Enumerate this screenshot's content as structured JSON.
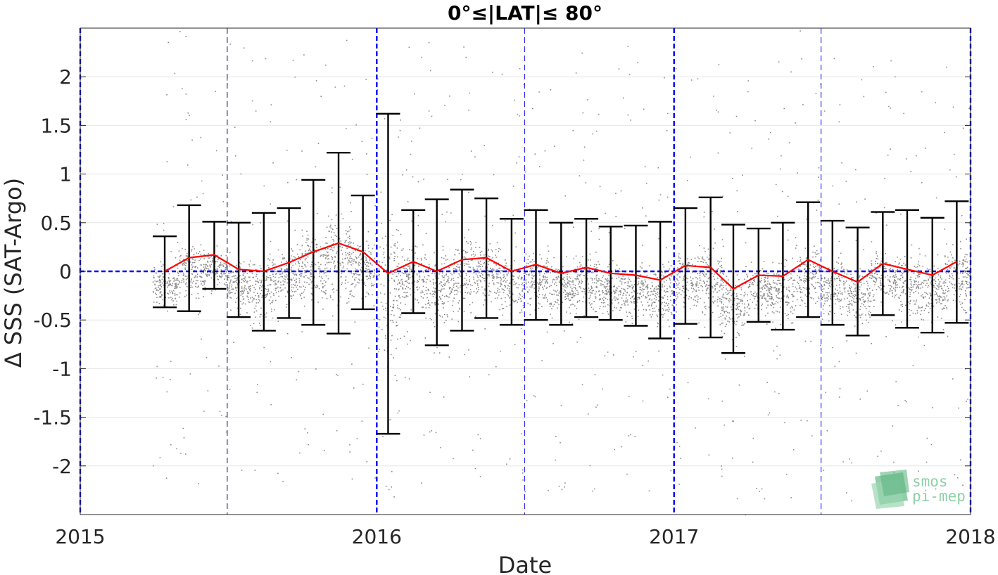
{
  "chart_data": {
    "type": "scatter",
    "title": "0°≤|LAT|≤ 80°",
    "xlabel": "Date",
    "ylabel": "Δ SSS (SAT-Argo)",
    "xlim": [
      "2015-01-01",
      "2018-01-01"
    ],
    "ylim": [
      -2.5,
      2.5
    ],
    "xticks": [
      "2015",
      "2016",
      "2017",
      "2018"
    ],
    "yticks": [
      "-2",
      "-1.5",
      "-1",
      "-0.5",
      "0",
      "0.5",
      "1",
      "1.5",
      "2"
    ],
    "grid": true,
    "colors": {
      "scatter": "#8c8c8c",
      "mean_line": "#ff0000",
      "error_bars": "#000000",
      "year_lines": "#0000ff",
      "zero_line": "#0000ff",
      "grid": "#e6e6e6",
      "axes": "#262626"
    },
    "scatter_note": "gray dots: individual SAT-Argo differences, dense between -0.5 and 0.5",
    "series": [
      {
        "type": "errorbar",
        "x": [
          "2015-04-15",
          "2015-05-15",
          "2015-06-15",
          "2015-07-15",
          "2015-08-15",
          "2015-09-15",
          "2015-10-15",
          "2015-11-15",
          "2015-12-15",
          "2016-01-15",
          "2016-02-15",
          "2016-03-15",
          "2016-04-15",
          "2016-05-15",
          "2016-06-15",
          "2016-07-15",
          "2016-08-15",
          "2016-09-15",
          "2016-10-15",
          "2016-11-15",
          "2016-12-15",
          "2017-01-15",
          "2017-02-15",
          "2017-03-15",
          "2017-04-15",
          "2017-05-15",
          "2017-06-15",
          "2017-07-15",
          "2017-08-15",
          "2017-09-15",
          "2017-10-15",
          "2017-11-15",
          "2017-12-15"
        ],
        "mean": [
          0.0,
          0.14,
          0.17,
          0.02,
          0.0,
          0.09,
          0.2,
          0.29,
          0.2,
          -0.02,
          0.1,
          0.0,
          0.12,
          0.14,
          0.0,
          0.07,
          -0.02,
          0.04,
          -0.02,
          -0.04,
          -0.09,
          0.06,
          0.04,
          -0.18,
          -0.04,
          -0.05,
          0.12,
          0.0,
          -0.11,
          0.08,
          0.02,
          -0.04,
          0.1
        ],
        "upper": [
          0.36,
          0.68,
          0.51,
          0.5,
          0.6,
          0.65,
          0.94,
          1.22,
          0.78,
          1.62,
          0.63,
          0.74,
          0.84,
          0.75,
          0.54,
          0.63,
          0.5,
          0.54,
          0.46,
          0.47,
          0.51,
          0.65,
          0.76,
          0.48,
          0.44,
          0.5,
          0.71,
          0.52,
          0.45,
          0.61,
          0.63,
          0.55,
          0.72
        ],
        "lower": [
          -0.37,
          -0.41,
          -0.18,
          -0.47,
          -0.61,
          -0.48,
          -0.55,
          -0.64,
          -0.39,
          -1.67,
          -0.43,
          -0.76,
          -0.61,
          -0.48,
          -0.55,
          -0.5,
          -0.55,
          -0.47,
          -0.5,
          -0.56,
          -0.69,
          -0.54,
          -0.68,
          -0.84,
          -0.52,
          -0.6,
          -0.47,
          -0.55,
          -0.66,
          -0.45,
          -0.58,
          -0.63,
          -0.53
        ]
      }
    ],
    "year_lines": [
      "2015-01-01",
      "2016-01-01",
      "2017-01-01",
      "2018-01-01"
    ],
    "half_year_lines": [
      "2015-07-01",
      "2016-07-01",
      "2017-07-01"
    ],
    "zero_line": 0
  },
  "logo": {
    "line1": "smos",
    "line2": "pi-mep"
  }
}
